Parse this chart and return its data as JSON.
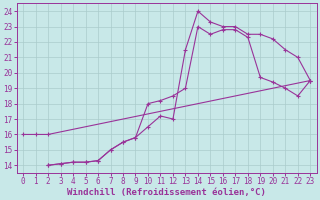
{
  "bg_color": "#c8e8e8",
  "line_color": "#993399",
  "grid_color": "#aacccc",
  "xlabel": "Windchill (Refroidissement éolien,°C)",
  "xlabel_fontsize": 6.5,
  "tick_fontsize": 5.5,
  "xlim": [
    -0.5,
    23.5
  ],
  "ylim": [
    13.5,
    24.5
  ],
  "yticks": [
    14,
    15,
    16,
    17,
    18,
    19,
    20,
    21,
    22,
    23,
    24
  ],
  "xticks": [
    0,
    1,
    2,
    3,
    4,
    5,
    6,
    7,
    8,
    9,
    10,
    11,
    12,
    13,
    14,
    15,
    16,
    17,
    18,
    19,
    20,
    21,
    22,
    23
  ],
  "line1_x": [
    0,
    1,
    2,
    23
  ],
  "line1_y": [
    16,
    16,
    16,
    19.5
  ],
  "line2_x": [
    2,
    3,
    4,
    5,
    6,
    7,
    8,
    9,
    10,
    11,
    12,
    13,
    14,
    15,
    16,
    17,
    18,
    19,
    20,
    21,
    22,
    23
  ],
  "line2_y": [
    14,
    14.1,
    14.2,
    14.2,
    14.3,
    15.0,
    15.5,
    15.8,
    16.5,
    17.2,
    17.0,
    21.5,
    24.0,
    23.3,
    23.0,
    23.0,
    22.5,
    22.5,
    22.2,
    21.5,
    21.0,
    19.5
  ],
  "line3_x": [
    2,
    3,
    4,
    5,
    6,
    7,
    8,
    9,
    10,
    11,
    12,
    13,
    14,
    15,
    16,
    17,
    18,
    19,
    20,
    21,
    22,
    23
  ],
  "line3_y": [
    14,
    14.1,
    14.2,
    14.2,
    14.3,
    15.0,
    15.5,
    15.8,
    18.0,
    18.2,
    18.5,
    19.0,
    23.0,
    22.5,
    22.8,
    22.8,
    22.3,
    19.7,
    19.4,
    19.0,
    18.5,
    19.5
  ]
}
